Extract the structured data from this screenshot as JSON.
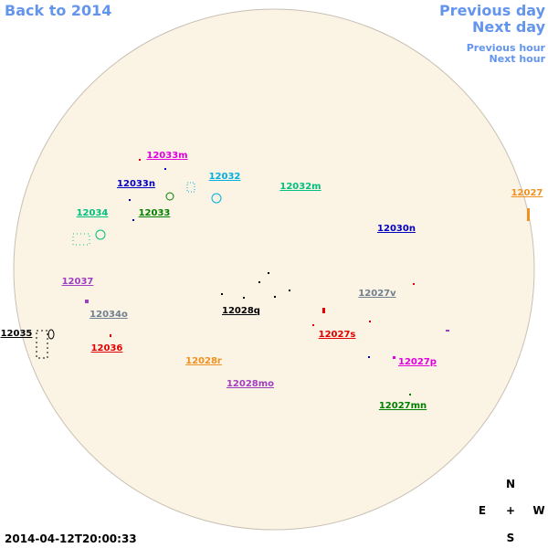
{
  "nav": {
    "back": "Back to 2014",
    "previous_day": "Previous day",
    "next_day": "Next day",
    "previous_hour": "Previous hour",
    "next_hour": "Next hour"
  },
  "regions": [
    {
      "label": "12033m"
    },
    {
      "label": "12033n"
    },
    {
      "label": "12032"
    },
    {
      "label": "12032m"
    },
    {
      "label": "12033"
    },
    {
      "label": "12034"
    },
    {
      "label": "12027"
    },
    {
      "label": "12030n"
    },
    {
      "label": "12037"
    },
    {
      "label": "12027v"
    },
    {
      "label": "12028q"
    },
    {
      "label": "12034o"
    },
    {
      "label": "12035"
    },
    {
      "label": "12027s"
    },
    {
      "label": "12036"
    },
    {
      "label": "12028r"
    },
    {
      "label": "12027p"
    },
    {
      "label": "12028mo"
    },
    {
      "label": "12027mn"
    }
  ],
  "compass": {
    "north": "N",
    "east": "E",
    "center": "+",
    "west": "W",
    "south": "S"
  },
  "timestamp": "2014-04-12T20:00:33"
}
